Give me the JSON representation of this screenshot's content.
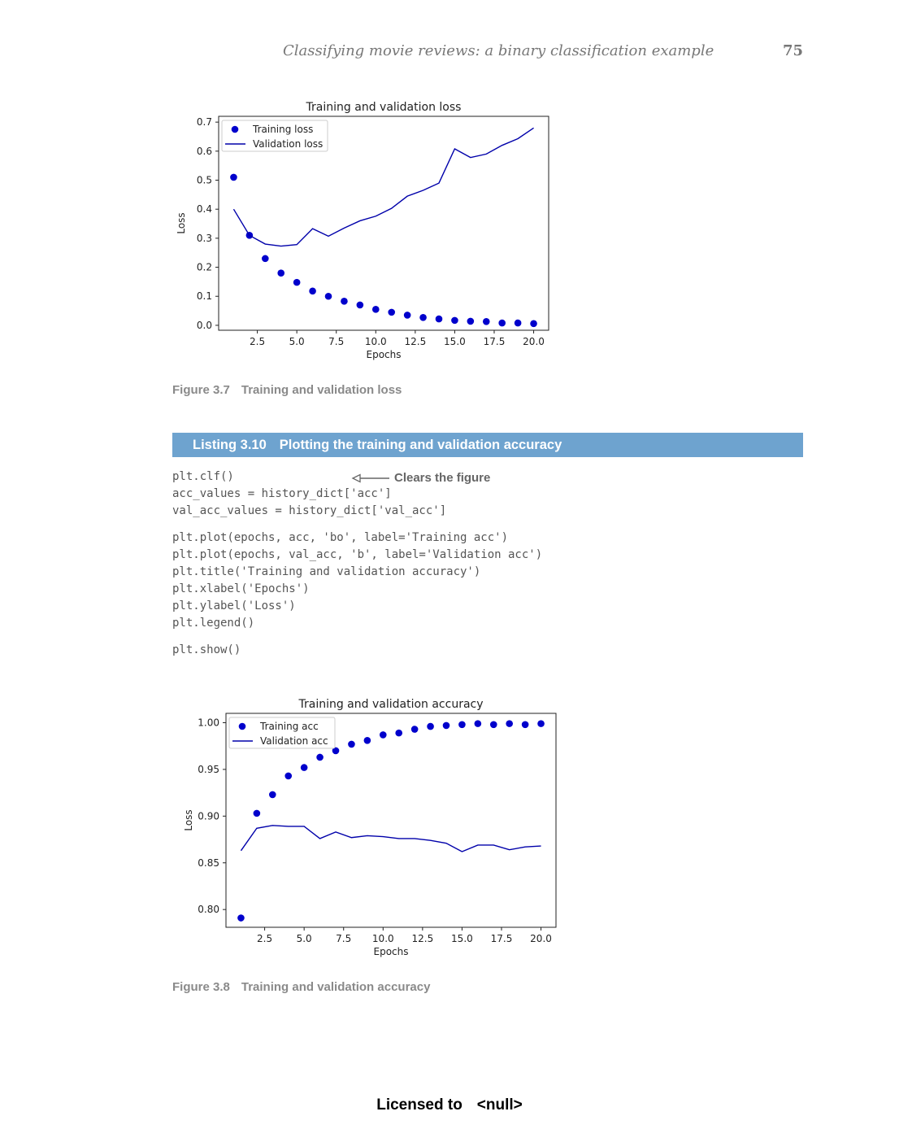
{
  "header": {
    "running_title": "Classifying movie reviews: a binary classification example",
    "page_number": "75"
  },
  "chart_data": [
    {
      "id": "loss",
      "type": "line",
      "title": "Training and validation loss",
      "xlabel": "Epochs",
      "ylabel": "Loss",
      "xlim": [
        0.05,
        20.95
      ],
      "ylim": [
        -0.017,
        0.72
      ],
      "xticks": [
        2.5,
        5.0,
        7.5,
        10.0,
        12.5,
        15.0,
        17.5,
        20.0
      ],
      "xtick_labels": [
        "2.5",
        "5.0",
        "7.5",
        "10.0",
        "12.5",
        "15.0",
        "17.5",
        "20.0"
      ],
      "yticks": [
        0.0,
        0.1,
        0.2,
        0.3,
        0.4,
        0.5,
        0.6,
        0.7
      ],
      "ytick_labels": [
        "0.0",
        "0.1",
        "0.2",
        "0.3",
        "0.4",
        "0.5",
        "0.6",
        "0.7"
      ],
      "legend_position": "upper-left",
      "x": [
        1,
        2,
        3,
        4,
        5,
        6,
        7,
        8,
        9,
        10,
        11,
        12,
        13,
        14,
        15,
        16,
        17,
        18,
        19,
        20
      ],
      "series": [
        {
          "name": "Training loss",
          "style": "points",
          "color": "#0000cc",
          "values": [
            0.51,
            0.31,
            0.23,
            0.18,
            0.148,
            0.118,
            0.1,
            0.083,
            0.07,
            0.055,
            0.045,
            0.035,
            0.027,
            0.022,
            0.017,
            0.014,
            0.013,
            0.008,
            0.008,
            0.006
          ]
        },
        {
          "name": "Validation loss",
          "style": "line",
          "color": "#0000aa",
          "values": [
            0.4,
            0.31,
            0.28,
            0.273,
            0.278,
            0.333,
            0.307,
            0.335,
            0.36,
            0.376,
            0.403,
            0.445,
            0.465,
            0.49,
            0.608,
            0.578,
            0.59,
            0.62,
            0.643,
            0.68
          ]
        }
      ]
    },
    {
      "id": "accuracy",
      "type": "line",
      "title": "Training and validation accuracy",
      "xlabel": "Epochs",
      "ylabel": "Loss",
      "xlim": [
        0.05,
        20.95
      ],
      "ylim": [
        0.781,
        1.01
      ],
      "xticks": [
        2.5,
        5.0,
        7.5,
        10.0,
        12.5,
        15.0,
        17.5,
        20.0
      ],
      "xtick_labels": [
        "2.5",
        "5.0",
        "7.5",
        "10.0",
        "12.5",
        "15.0",
        "17.5",
        "20.0"
      ],
      "yticks": [
        0.8,
        0.85,
        0.9,
        0.95,
        1.0
      ],
      "ytick_labels": [
        "0.80",
        "0.85",
        "0.90",
        "0.95",
        "1.00"
      ],
      "legend_position": "upper-left",
      "x": [
        1,
        2,
        3,
        4,
        5,
        6,
        7,
        8,
        9,
        10,
        11,
        12,
        13,
        14,
        15,
        16,
        17,
        18,
        19,
        20
      ],
      "series": [
        {
          "name": "Training acc",
          "style": "points",
          "color": "#0000cc",
          "values": [
            0.791,
            0.903,
            0.923,
            0.943,
            0.952,
            0.963,
            0.97,
            0.977,
            0.981,
            0.987,
            0.989,
            0.993,
            0.996,
            0.997,
            0.998,
            0.999,
            0.998,
            0.999,
            0.998,
            0.999
          ]
        },
        {
          "name": "Validation acc",
          "style": "line",
          "color": "#0000aa",
          "values": [
            0.863,
            0.887,
            0.89,
            0.889,
            0.889,
            0.876,
            0.883,
            0.877,
            0.879,
            0.878,
            0.876,
            0.876,
            0.874,
            0.871,
            0.862,
            0.869,
            0.869,
            0.864,
            0.867,
            0.868
          ]
        }
      ]
    }
  ],
  "figure_37": {
    "label": "Figure 3.7",
    "text": "Training and validation loss"
  },
  "listing": {
    "label": "Listing 3.10",
    "title": "Plotting the training and validation accuracy"
  },
  "code": {
    "block1": "plt.clf()\nacc_values = history_dict['acc']\nval_acc_values = history_dict['val_acc']",
    "block2": "plt.plot(epochs, acc, 'bo', label='Training acc')\nplt.plot(epochs, val_acc, 'b', label='Validation acc')\nplt.title('Training and validation accuracy')\nplt.xlabel('Epochs')\nplt.ylabel('Loss')\nplt.legend()",
    "block3": "plt.show()"
  },
  "annotation": {
    "text": "Clears the figure"
  },
  "figure_38": {
    "label": "Figure 3.8",
    "text": "Training and validation accuracy"
  },
  "footer": {
    "prefix": "Licensed to",
    "name": "<null>"
  }
}
